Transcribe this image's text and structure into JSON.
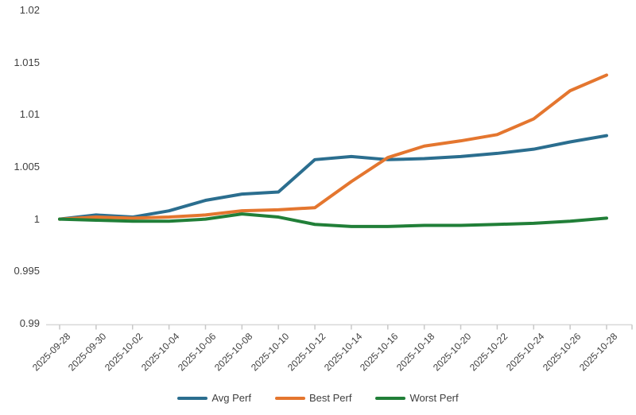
{
  "chart_data": {
    "type": "line",
    "title": "",
    "x": [
      "2025-09-28",
      "2025-09-30",
      "2025-10-02",
      "2025-10-04",
      "2025-10-06",
      "2025-10-08",
      "2025-10-10",
      "2025-10-12",
      "2025-10-14",
      "2025-10-16",
      "2025-10-18",
      "2025-10-20",
      "2025-10-22",
      "2025-10-24",
      "2025-10-26",
      "2025-10-28"
    ],
    "series": [
      {
        "name": "Avg Perf",
        "color": "#2b6e8f",
        "values": [
          1.0,
          1.0004,
          1.0002,
          1.0008,
          1.0018,
          1.0024,
          1.0026,
          1.0057,
          1.006,
          1.0057,
          1.0058,
          1.006,
          1.0063,
          1.0067,
          1.0074,
          1.008
        ]
      },
      {
        "name": "Best Perf",
        "color": "#e4762f",
        "values": [
          1.0,
          1.0002,
          1.0001,
          1.0002,
          1.0004,
          1.0008,
          1.0009,
          1.0011,
          1.0036,
          1.0059,
          1.007,
          1.0075,
          1.0081,
          1.0096,
          1.0123,
          1.0138
        ]
      },
      {
        "name": "Worst Perf",
        "color": "#217f38",
        "values": [
          1.0,
          0.9999,
          0.9998,
          0.9998,
          1.0,
          1.0005,
          1.0002,
          0.9995,
          0.9993,
          0.9993,
          0.9994,
          0.9994,
          0.9995,
          0.9996,
          0.9998,
          1.0001
        ]
      }
    ],
    "ylim": [
      0.99,
      1.02
    ],
    "yticks": [
      1.02,
      1.015,
      1.01,
      1.005,
      1,
      0.995,
      0.99
    ],
    "ytick_labels": [
      "1.02",
      "1.015",
      "1.01",
      "1.005",
      "1",
      "0.995",
      "0.99"
    ],
    "xlabel": "",
    "ylabel": "",
    "grid": false,
    "legend_position": "bottom"
  },
  "style": {
    "axis_line_color": "#d8d8d8",
    "tick_color": "#c8c8c8",
    "text_color": "#3f3f3f",
    "background": "#ffffff",
    "line_width": 4
  }
}
